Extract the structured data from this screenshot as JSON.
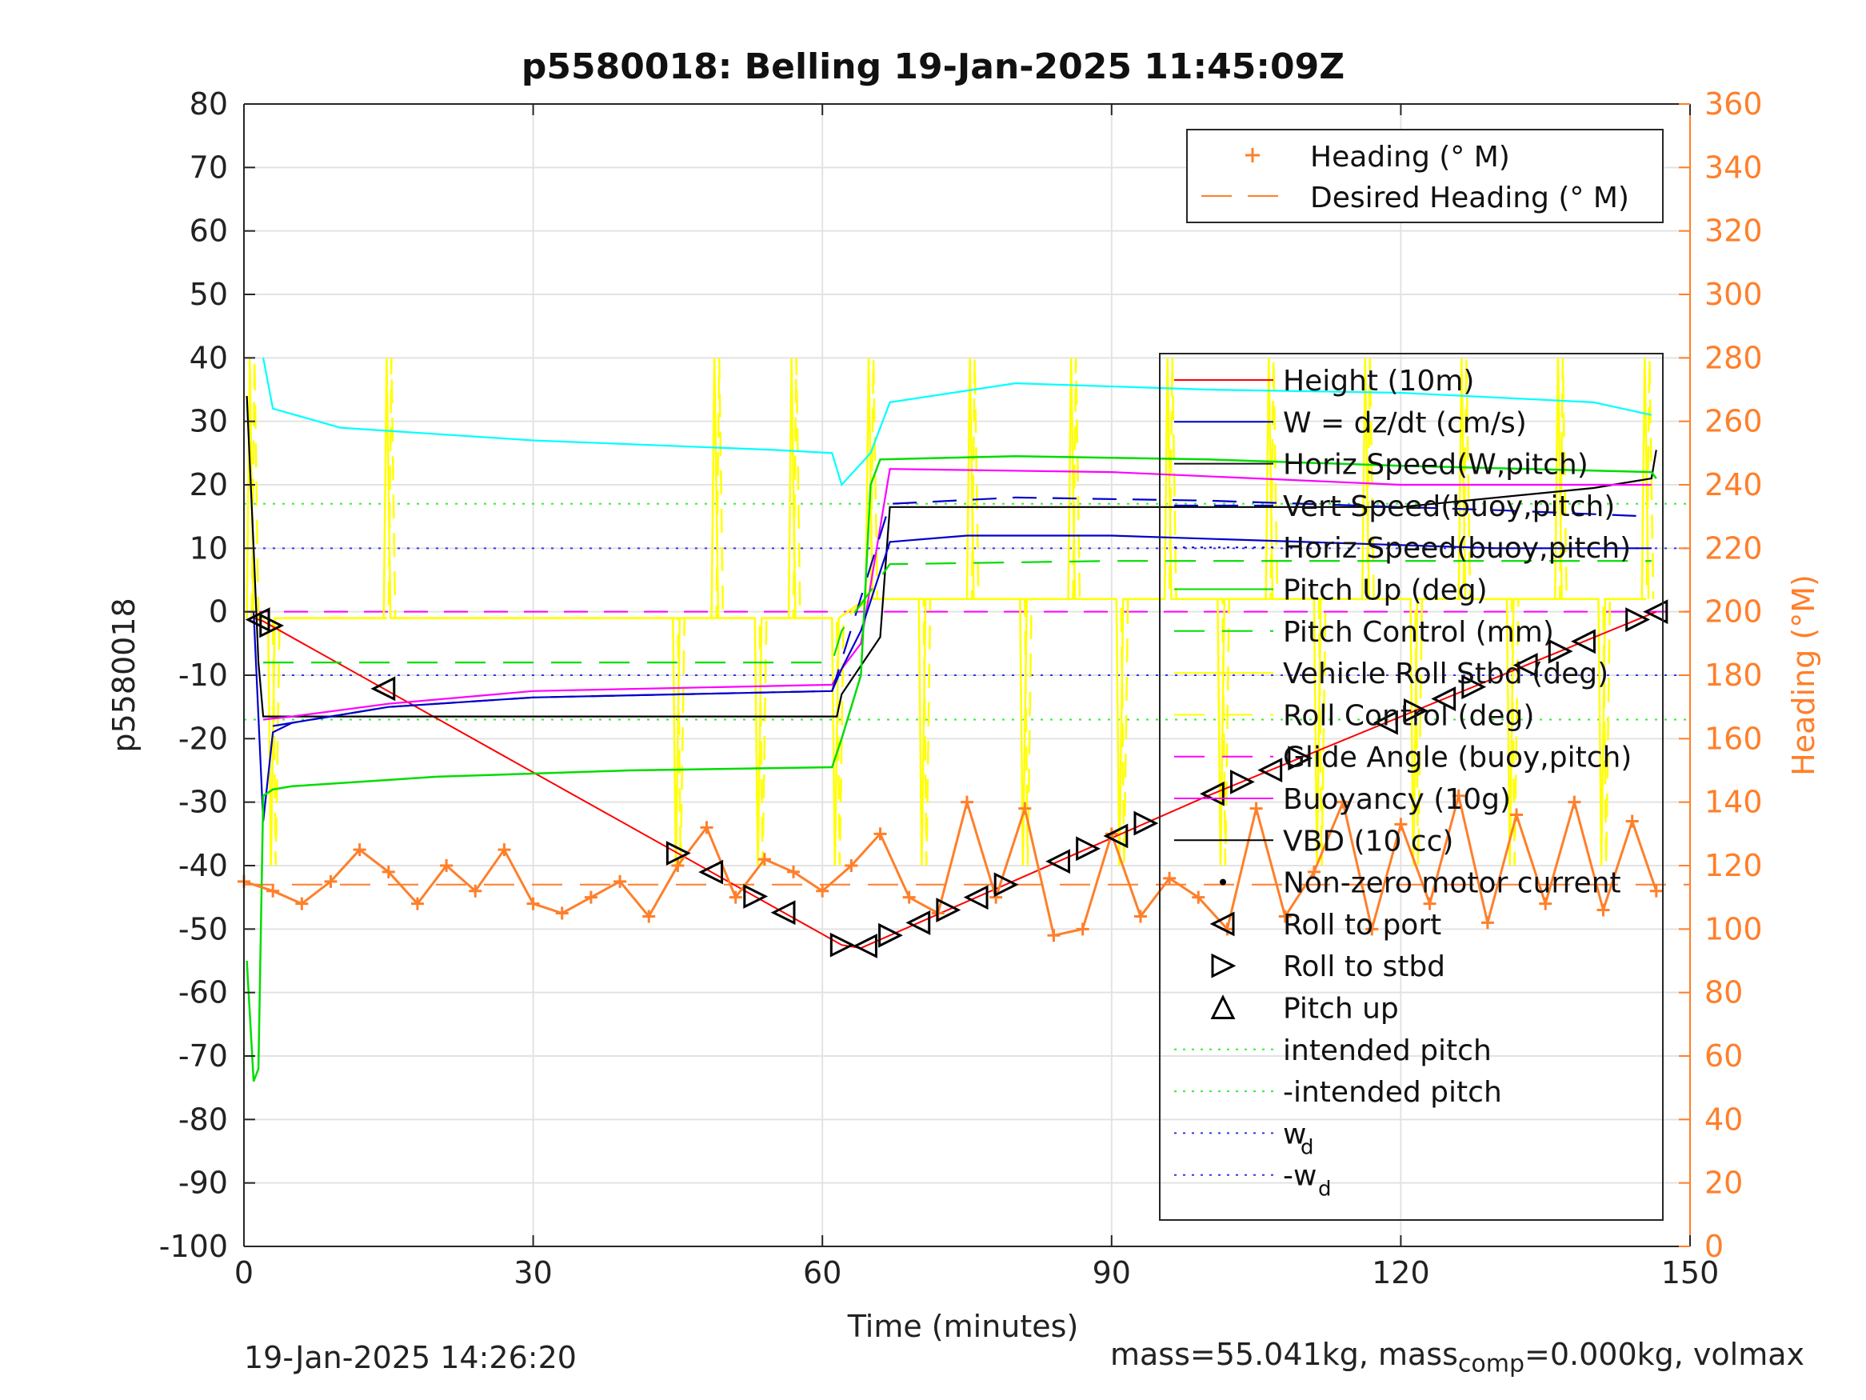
{
  "title": "p5580018: Belling 19-Jan-2025 11:45:09Z",
  "footer": {
    "left": "19-Jan-2025 14:26:20",
    "mass_text": "mass=55.041kg, mass",
    "mass_sub": "comp",
    "mass_text2": "=0.000kg, volmax"
  },
  "colors": {
    "height": "#ff0000",
    "w": "#0000cc",
    "horiz_w": "#111111",
    "vert_buoy": "#0000cc",
    "horiz_buoy": "#0000cc",
    "pitch": "#00dd00",
    "pitch_control": "#00dd00",
    "roll": "#ffff00",
    "roll_control": "#ffff00",
    "glide": "#ff00ff",
    "buoyancy": "#ff00ff",
    "vbd": "#000000",
    "heading": "#ff7f2a",
    "cyan": "#00ffff",
    "intended": "#33ee33",
    "wd": "#3333ee"
  },
  "chart_data": {
    "type": "line",
    "xlabel": "Time (minutes)",
    "ylabel": "p5580018",
    "ylabel_right": "Heading (°M)",
    "xlim": [
      0,
      150
    ],
    "ylim": [
      -100,
      80
    ],
    "ylim_right": [
      0,
      360
    ],
    "xticks": [
      0,
      30,
      60,
      90,
      120,
      150
    ],
    "yticks": [
      -100,
      -90,
      -80,
      -70,
      -60,
      -50,
      -40,
      -30,
      -20,
      -10,
      0,
      10,
      20,
      30,
      40,
      50,
      60,
      70,
      80
    ],
    "yticks_right": [
      0,
      20,
      40,
      60,
      80,
      100,
      120,
      140,
      160,
      180,
      200,
      220,
      240,
      260,
      280,
      300,
      320,
      340,
      360
    ],
    "grid": true,
    "legend_top": [
      "Heading (° M)",
      "Desired Heading (° M)"
    ],
    "legend_main": [
      "Height (10m)",
      "W = dz/dt (cm/s)",
      "Horiz Speed(W,pitch)",
      "Vert Speed(buoy,pitch)",
      "Horiz Speed(buoy,pitch)",
      "Pitch Up (deg)",
      "Pitch Control (mm)",
      "Vehicle Roll Stbd (deg)",
      "Roll Control (deg)",
      "Glide Angle (buoy,pitch)",
      "Buoyancy (10g)",
      "VBD (10 cc)",
      "Non-zero motor current",
      "Roll to port",
      "Roll to stbd",
      "Pitch up",
      "intended pitch",
      "-intended pitch",
      "w",
      "-w"
    ],
    "legend_sub": "d",
    "legend_placement": "top-right",
    "reference_lines": {
      "intended_pitch": 17,
      "neg_intended_pitch": -17,
      "wd": 10,
      "neg_wd": -10,
      "desired_heading": 114
    },
    "series": [
      {
        "name": "Height (10m)",
        "x": [
          1,
          2,
          62,
          64,
          100,
          146.5
        ],
        "y": [
          -1,
          -1.5,
          -52.5,
          -53,
          -29,
          0
        ]
      },
      {
        "name": "VBD (10 cc)",
        "x": [
          0.3,
          1,
          1.5,
          2,
          10,
          30,
          61.5,
          62,
          66,
          67,
          100,
          120,
          140,
          144,
          146,
          146.5
        ],
        "y": [
          34,
          10,
          -8,
          -16.5,
          -16.5,
          -16.5,
          -16.5,
          -13,
          -4,
          16.5,
          16.5,
          16.5,
          19.5,
          20.5,
          21,
          25.5
        ]
      },
      {
        "name": "Buoyancy (10g)",
        "x": [
          2,
          5,
          15,
          30,
          61,
          62,
          64,
          67,
          90,
          120,
          140,
          146
        ],
        "y": [
          -17,
          -16.5,
          -14.5,
          -12.5,
          -11.5,
          -9,
          -5,
          22.5,
          22,
          20,
          20,
          20
        ]
      },
      {
        "name": "W = dz/dt (cm/s)",
        "x": [
          0.3,
          1,
          2,
          3,
          5,
          15,
          30,
          61,
          62,
          64,
          67,
          75,
          90,
          110,
          130,
          146
        ],
        "y": [
          0,
          0,
          -33,
          -19,
          -17.5,
          -15,
          -13.5,
          -12.5,
          -9,
          -3,
          11,
          12,
          12,
          11,
          10,
          10
        ]
      },
      {
        "name": "Vert Speed(buoy,pitch)",
        "x": [
          3,
          15,
          30,
          61,
          67,
          80,
          100,
          130,
          146
        ],
        "y": [
          -18,
          -15,
          -13.5,
          -12.5,
          17,
          18,
          17.5,
          16,
          15
        ]
      },
      {
        "name": "Pitch Up (deg)",
        "x": [
          0.3,
          1,
          1.5,
          2,
          3,
          5,
          20,
          40,
          61,
          62,
          64,
          65,
          66,
          80,
          100,
          120,
          146,
          146.5
        ],
        "y": [
          -55,
          -74,
          -72,
          -29,
          -28,
          -27.5,
          -26,
          -25,
          -24.5,
          -20,
          -10,
          20,
          24,
          24.5,
          24,
          23,
          22,
          21
        ]
      },
      {
        "name": "Pitch Control (mm)",
        "x": [
          2,
          30,
          61,
          62,
          67,
          90,
          120,
          146
        ],
        "y": [
          -8,
          -8,
          -8,
          -3,
          7.5,
          8,
          8,
          8
        ]
      },
      {
        "name": "Horiz Speed(buoy,pitch)",
        "x": [
          2,
          3,
          10,
          30,
          55,
          61,
          62,
          65,
          67,
          80,
          100,
          120,
          140,
          146
        ],
        "y": [
          40,
          32,
          29,
          27,
          25.5,
          25,
          20,
          25,
          33,
          36,
          35,
          34.5,
          33,
          31
        ]
      },
      {
        "name": "Heading (° M)",
        "x": [
          0,
          3,
          6,
          9,
          12,
          15,
          18,
          21,
          24,
          27,
          30,
          33,
          36,
          39,
          42,
          45,
          48,
          51,
          54,
          57,
          60,
          63,
          66,
          69,
          72,
          75,
          78,
          81,
          84,
          87,
          90,
          93,
          96,
          99,
          102,
          105,
          108,
          111,
          114,
          117,
          120,
          123,
          126,
          129,
          132,
          135,
          138,
          141,
          144,
          146.5
        ],
        "y": [
          115,
          112,
          108,
          115,
          125,
          118,
          108,
          120,
          112,
          125,
          108,
          105,
          110,
          115,
          104,
          120,
          132,
          110,
          122,
          118,
          112,
          120,
          130,
          110,
          105,
          140,
          110,
          138,
          98,
          100,
          130,
          104,
          116,
          110,
          100,
          138,
          104,
          118,
          140,
          100,
          133,
          108,
          142,
          102,
          136,
          108,
          140,
          106,
          134,
          112
        ]
      }
    ]
  }
}
